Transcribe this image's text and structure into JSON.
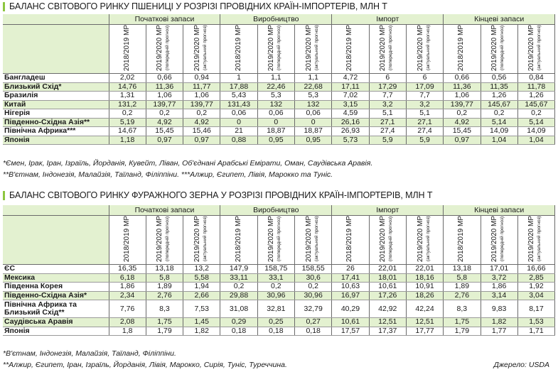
{
  "wheat": {
    "title": "БАЛАНС СВІТОВОГО РИНКУ ПШЕНИЦІ У РОЗРІЗІ ПРОВІДНИХ КРАЇН-ІМПОРТЕРІВ, МЛН Т",
    "groups": [
      "Початкові запаси",
      "Виробництво",
      "Імпорт",
      "Кінцеві запаси"
    ],
    "subcols": [
      {
        "l1": "2018/2019 МР",
        "l2": ""
      },
      {
        "l1": "2019/2020 МР",
        "l2": "(попередній прогноз)"
      },
      {
        "l1": "2019/2020 МР",
        "l2": "(актуальний прогноз)"
      }
    ],
    "rows": [
      {
        "name": "Бангладеш",
        "values": [
          "2,02",
          "0,66",
          "0,94",
          "1",
          "1,1",
          "1,1",
          "4,72",
          "6",
          "6",
          "0,66",
          "0,56",
          "0,84"
        ]
      },
      {
        "name": "Близький Схід*",
        "values": [
          "14,76",
          "11,36",
          "11,77",
          "17,88",
          "22,46",
          "22,68",
          "17,11",
          "17,29",
          "17,09",
          "11,36",
          "11,35",
          "11,78"
        ]
      },
      {
        "name": "Бразилія",
        "values": [
          "1,31",
          "1,06",
          "1,06",
          "5,43",
          "5,3",
          "5,3",
          "7,02",
          "7,7",
          "7,7",
          "1,06",
          "1,26",
          "1,26"
        ]
      },
      {
        "name": "Китай",
        "values": [
          "131,2",
          "139,77",
          "139,77",
          "131,43",
          "132",
          "132",
          "3,15",
          "3,2",
          "3,2",
          "139,77",
          "145,67",
          "145,67"
        ]
      },
      {
        "name": "Нігерія",
        "values": [
          "0,2",
          "0,2",
          "0,2",
          "0,06",
          "0,06",
          "0,06",
          "4,59",
          "5,1",
          "5,1",
          "0,2",
          "0,2",
          "0,2"
        ]
      },
      {
        "name": "Південно-Східна Азія**",
        "values": [
          "5,19",
          "4,92",
          "4,92",
          "0",
          "0",
          "0",
          "26,16",
          "27,1",
          "27,1",
          "4,92",
          "5,14",
          "5,14"
        ]
      },
      {
        "name": "Північна Африка***",
        "values": [
          "14,67",
          "15,45",
          "15,46",
          "21",
          "18,87",
          "18,87",
          "26,93",
          "27,4",
          "27,4",
          "15,45",
          "14,09",
          "14,09"
        ]
      },
      {
        "name": "Японія",
        "values": [
          "1,18",
          "0,97",
          "0,97",
          "0,88",
          "0,95",
          "0,95",
          "5,73",
          "5,9",
          "5,9",
          "0,97",
          "1,04",
          "1,04"
        ]
      }
    ],
    "note1": "*Ємен, Ірак, Іран, Ізраїль, Йорданія, Кувейт, Ліван, Об'єднані Арабські Емірати, Оман, Саудівська Аравія.",
    "note2": "**В'єтнам, Індонезія, Малайзія, Таїланд, Філіппіни.     ***Алжир, Єгипет, Лівія, Марокко та Туніс."
  },
  "feed": {
    "title": "БАЛАНС СВІТОВОГО РИНКУ ФУРАЖНОГО ЗЕРНА У РОЗРІЗІ ПРОВІДНИХ КРАЇН-ІМПОРТЕРІВ, МЛН Т",
    "groups": [
      "Початкові запаси",
      "Виробництво",
      "Імпорт",
      "Кінцеві запаси"
    ],
    "rows": [
      {
        "name": "ЄС",
        "values": [
          "16,35",
          "13,18",
          "13,2",
          "147,9",
          "158,75",
          "158,55",
          "26",
          "22,01",
          "22,01",
          "13,18",
          "17,01",
          "16,66"
        ]
      },
      {
        "name": "Мексика",
        "values": [
          "6,18",
          "5,8",
          "5,58",
          "33,11",
          "33,1",
          "30,6",
          "17,41",
          "18,01",
          "18,16",
          "5,8",
          "3,72",
          "2,85"
        ]
      },
      {
        "name": "Південна Корея",
        "values": [
          "1,86",
          "1,89",
          "1,94",
          "0,2",
          "0,2",
          "0,2",
          "10,63",
          "10,61",
          "10,91",
          "1,89",
          "1,86",
          "1,92"
        ]
      },
      {
        "name": "Південно-Східна Азія*",
        "values": [
          "2,34",
          "2,76",
          "2,66",
          "29,88",
          "30,96",
          "30,96",
          "16,97",
          "17,26",
          "18,26",
          "2,76",
          "3,14",
          "3,04"
        ]
      },
      {
        "name": "Північна Африка та Близький Схід**",
        "values": [
          "7,76",
          "8,3",
          "7,53",
          "31,08",
          "32,81",
          "32,79",
          "40,29",
          "42,92",
          "42,24",
          "8,3",
          "9,83",
          "8,17"
        ]
      },
      {
        "name": "Саудівська Аравія",
        "values": [
          "2,08",
          "1,75",
          "1,45",
          "0,29",
          "0,25",
          "0,27",
          "10,61",
          "12,51",
          "12,51",
          "1,75",
          "1,82",
          "1,53"
        ]
      },
      {
        "name": "Японія",
        "values": [
          "1,8",
          "1,79",
          "1,82",
          "0,18",
          "0,18",
          "0,18",
          "17,57",
          "17,37",
          "17,77",
          "1,79",
          "1,77",
          "1,71"
        ]
      }
    ],
    "note1": "*В'єтнам, Індонезія, Малайзія, Таїланд, Філіппіни.",
    "note2": "**Алжир, Єгипет, Іран, Ізраїль, Йорданія, Лівія, Марокко, Сирія, Туніс, Туреччина.",
    "source": "Джерело: USDA"
  },
  "colors": {
    "accent": "#8dc63f",
    "band": "#e3f1d0",
    "rule": "#6a6a6a"
  }
}
